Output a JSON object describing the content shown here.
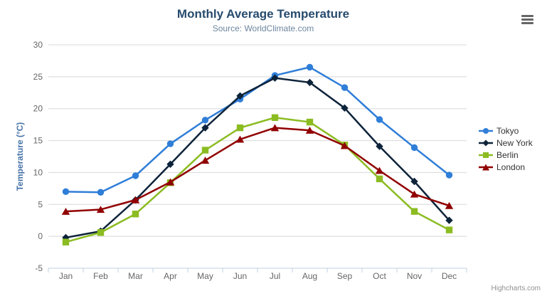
{
  "header": {
    "title": "Monthly Average Temperature",
    "subtitle": "Source: WorldClimate.com"
  },
  "credits": "Highcharts.com",
  "menu_icon": "hamburger-icon",
  "colors": {
    "title": "#274b6d",
    "subtitle": "#6D869F",
    "y_axis_title": "#4572A7",
    "axis_label": "#666666",
    "legend_text": "#333333",
    "gridline": "#D8D8D8",
    "axis_line": "#C0D0E0",
    "credits_text": "#909090"
  },
  "chart_data": {
    "type": "line",
    "title": "Monthly Average Temperature",
    "subtitle": "Source: WorldClimate.com",
    "xlabel": "",
    "ylabel": "Temperature (°C)",
    "ylim": [
      -5,
      30
    ],
    "yticks": [
      -5,
      0,
      5,
      10,
      15,
      20,
      25,
      30
    ],
    "grid": true,
    "legend_position": "right",
    "categories": [
      "Jan",
      "Feb",
      "Mar",
      "Apr",
      "May",
      "Jun",
      "Jul",
      "Aug",
      "Sep",
      "Oct",
      "Nov",
      "Dec"
    ],
    "series": [
      {
        "name": "Tokyo",
        "color": "#2f7ed8",
        "marker": "circle",
        "values": [
          7.0,
          6.9,
          9.5,
          14.5,
          18.2,
          21.5,
          25.2,
          26.5,
          23.3,
          18.3,
          13.9,
          9.6
        ]
      },
      {
        "name": "New York",
        "color": "#0d233a",
        "marker": "diamond",
        "values": [
          -0.2,
          0.8,
          5.7,
          11.3,
          17.0,
          22.0,
          24.8,
          24.1,
          20.1,
          14.1,
          8.6,
          2.5
        ]
      },
      {
        "name": "Berlin",
        "color": "#8bbc21",
        "marker": "square",
        "values": [
          -0.9,
          0.6,
          3.5,
          8.4,
          13.5,
          17.0,
          18.6,
          17.9,
          14.3,
          9.0,
          3.9,
          1.0
        ]
      },
      {
        "name": "London",
        "color": "#910000",
        "marker": "triangle",
        "values": [
          3.9,
          4.2,
          5.7,
          8.5,
          11.9,
          15.2,
          17.0,
          16.6,
          14.2,
          10.3,
          6.6,
          4.8
        ]
      }
    ]
  }
}
